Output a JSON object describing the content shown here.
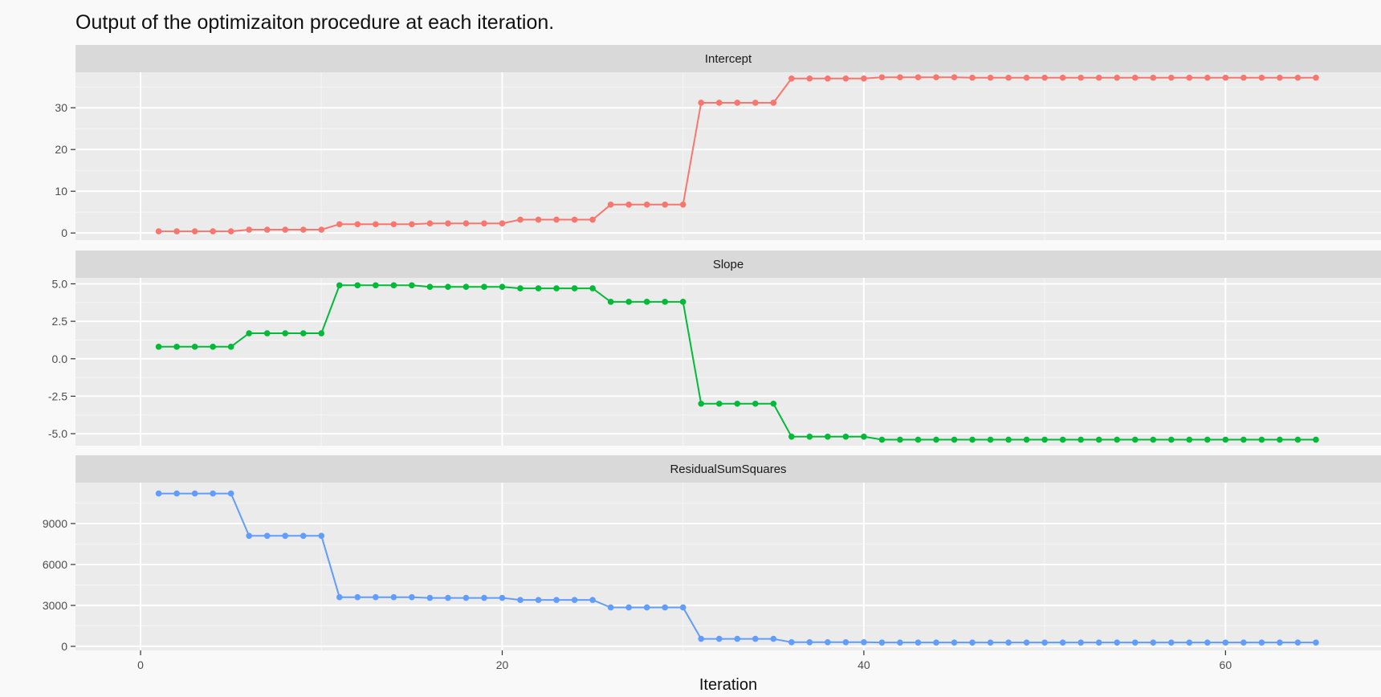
{
  "title": "Output of the optimizaiton procedure at each iteration.",
  "chart_data": {
    "type": "line",
    "title": "Output of the optimizaiton procedure at each iteration.",
    "xlabel": "Iteration",
    "xlim": [
      -3.6,
      68.6
    ],
    "x_ticks": [
      0,
      20,
      40,
      60
    ],
    "grid": true,
    "facets": [
      {
        "name": "Intercept",
        "color": "#F8766D",
        "ylim": [
          -1.7,
          38.5
        ],
        "y_ticks": [
          0,
          10,
          20,
          30
        ],
        "y_tick_labels": [
          "0",
          "10",
          "20",
          "30"
        ],
        "x": [
          1,
          2,
          3,
          4,
          5,
          6,
          7,
          8,
          9,
          10,
          11,
          12,
          13,
          14,
          15,
          16,
          17,
          18,
          19,
          20,
          21,
          22,
          23,
          24,
          25,
          26,
          27,
          28,
          29,
          30,
          31,
          32,
          33,
          34,
          35,
          36,
          37,
          38,
          39,
          40,
          41,
          42,
          43,
          44,
          45,
          46,
          47,
          48,
          49,
          50,
          51,
          52,
          53,
          54,
          55,
          56,
          57,
          58,
          59,
          60,
          61,
          62,
          63,
          64,
          65
        ],
        "values": [
          0.4,
          0.4,
          0.4,
          0.4,
          0.4,
          0.8,
          0.8,
          0.8,
          0.8,
          0.8,
          2.1,
          2.1,
          2.1,
          2.1,
          2.1,
          2.3,
          2.3,
          2.3,
          2.3,
          2.3,
          3.2,
          3.2,
          3.2,
          3.2,
          3.2,
          6.8,
          6.8,
          6.8,
          6.8,
          6.8,
          31.2,
          31.2,
          31.2,
          31.2,
          31.2,
          37.0,
          37.0,
          37.0,
          37.0,
          37.0,
          37.3,
          37.3,
          37.3,
          37.3,
          37.3,
          37.2,
          37.2,
          37.2,
          37.2,
          37.2,
          37.2,
          37.2,
          37.2,
          37.2,
          37.2,
          37.2,
          37.2,
          37.2,
          37.2,
          37.2,
          37.2,
          37.2,
          37.2,
          37.2,
          37.2
        ]
      },
      {
        "name": "Slope",
        "color": "#00BA38",
        "ylim": [
          -5.8,
          5.4
        ],
        "y_ticks": [
          -5,
          -2.5,
          0,
          2.5,
          5
        ],
        "y_tick_labels": [
          "-5.0",
          "-2.5",
          "0.0",
          "2.5",
          "5.0"
        ],
        "x": [
          1,
          2,
          3,
          4,
          5,
          6,
          7,
          8,
          9,
          10,
          11,
          12,
          13,
          14,
          15,
          16,
          17,
          18,
          19,
          20,
          21,
          22,
          23,
          24,
          25,
          26,
          27,
          28,
          29,
          30,
          31,
          32,
          33,
          34,
          35,
          36,
          37,
          38,
          39,
          40,
          41,
          42,
          43,
          44,
          45,
          46,
          47,
          48,
          49,
          50,
          51,
          52,
          53,
          54,
          55,
          56,
          57,
          58,
          59,
          60,
          61,
          62,
          63,
          64,
          65
        ],
        "values": [
          0.8,
          0.8,
          0.8,
          0.8,
          0.8,
          1.7,
          1.7,
          1.7,
          1.7,
          1.7,
          4.9,
          4.9,
          4.9,
          4.9,
          4.9,
          4.8,
          4.8,
          4.8,
          4.8,
          4.8,
          4.7,
          4.7,
          4.7,
          4.7,
          4.7,
          3.8,
          3.8,
          3.8,
          3.8,
          3.8,
          -3.0,
          -3.0,
          -3.0,
          -3.0,
          -3.0,
          -5.2,
          -5.2,
          -5.2,
          -5.2,
          -5.2,
          -5.4,
          -5.4,
          -5.4,
          -5.4,
          -5.4,
          -5.4,
          -5.4,
          -5.4,
          -5.4,
          -5.4,
          -5.4,
          -5.4,
          -5.4,
          -5.4,
          -5.4,
          -5.4,
          -5.4,
          -5.4,
          -5.4,
          -5.4,
          -5.4,
          -5.4,
          -5.4,
          -5.4,
          -5.4
        ]
      },
      {
        "name": "ResidualSumSquares",
        "color": "#619CFF",
        "ylim": [
          -300,
          12000
        ],
        "y_ticks": [
          0,
          3000,
          6000,
          9000
        ],
        "y_tick_labels": [
          "0",
          "3000",
          "6000",
          "9000"
        ],
        "x": [
          1,
          2,
          3,
          4,
          5,
          6,
          7,
          8,
          9,
          10,
          11,
          12,
          13,
          14,
          15,
          16,
          17,
          18,
          19,
          20,
          21,
          22,
          23,
          24,
          25,
          26,
          27,
          28,
          29,
          30,
          31,
          32,
          33,
          34,
          35,
          36,
          37,
          38,
          39,
          40,
          41,
          42,
          43,
          44,
          45,
          46,
          47,
          48,
          49,
          50,
          51,
          52,
          53,
          54,
          55,
          56,
          57,
          58,
          59,
          60,
          61,
          62,
          63,
          64,
          65
        ],
        "values": [
          11200,
          11200,
          11200,
          11200,
          11200,
          8100,
          8100,
          8100,
          8100,
          8100,
          3600,
          3600,
          3600,
          3600,
          3600,
          3550,
          3550,
          3550,
          3550,
          3550,
          3400,
          3400,
          3400,
          3400,
          3400,
          2850,
          2850,
          2850,
          2850,
          2850,
          550,
          550,
          550,
          550,
          550,
          300,
          300,
          300,
          300,
          300,
          280,
          280,
          280,
          280,
          280,
          280,
          280,
          280,
          280,
          280,
          280,
          280,
          280,
          280,
          280,
          280,
          280,
          280,
          280,
          280,
          280,
          280,
          280,
          280,
          280
        ]
      }
    ]
  }
}
